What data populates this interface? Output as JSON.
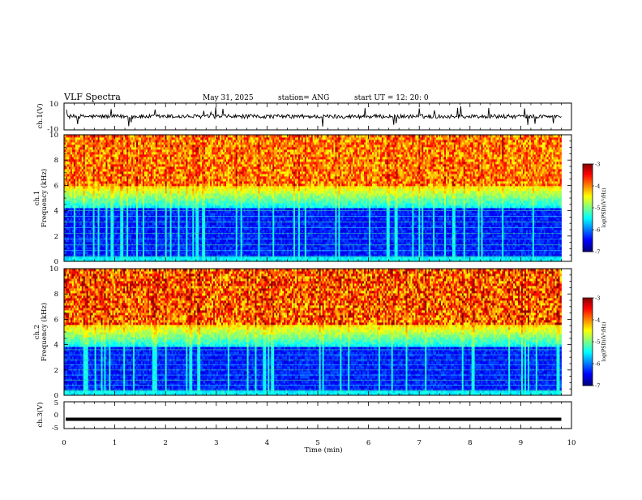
{
  "header": {
    "title": "VLF Spectra",
    "date": "May 31, 2025",
    "station": "station= ANG",
    "start": "start  UT  =    12: 20: 0"
  },
  "chart_data": [
    {
      "type": "line",
      "panel": "ch1-waveform",
      "ylabel": "ch.1(V)",
      "ylim": [
        -10,
        10
      ],
      "ytick_labels": [
        "10",
        "-10"
      ],
      "xlim": [
        0,
        10
      ],
      "baseline_level": 0,
      "noise_amplitude": 1.5
    },
    {
      "type": "heatmap",
      "panel": "ch1-spectrogram",
      "ylabel_lines": [
        "ch.1",
        "Frequency (kHz)"
      ],
      "ylim": [
        0,
        10
      ],
      "ytick_labels": [
        "0",
        "2",
        "4",
        "6",
        "8",
        "10"
      ],
      "xlim": [
        0,
        10
      ],
      "data_extent_min": 9.8,
      "colorbar": {
        "range": [
          -7,
          -3
        ],
        "tick_labels": [
          "-3",
          "-4",
          "-5",
          "-6",
          "-7"
        ],
        "label": "log(PSD)(V²/Hz)"
      },
      "low_band_khz": [
        0,
        4.2
      ],
      "transition_khz": [
        4.2,
        6.0
      ],
      "high_band_khz": [
        6.0,
        10
      ]
    },
    {
      "type": "heatmap",
      "panel": "ch2-spectrogram",
      "ylabel_lines": [
        "ch.2",
        "Frequency (kHz)"
      ],
      "ylim": [
        0,
        10
      ],
      "ytick_labels": [
        "0",
        "2",
        "4",
        "6",
        "8",
        "10"
      ],
      "xlim": [
        0,
        10
      ],
      "data_extent_min": 9.8,
      "colorbar": {
        "range": [
          -7,
          -3
        ],
        "tick_labels": [
          "-3",
          "-4",
          "-5",
          "-6",
          "-7"
        ],
        "label": "log(PSD)(V²/Hz)"
      },
      "low_band_khz": [
        0,
        3.8
      ],
      "transition_khz": [
        3.8,
        5.6
      ],
      "high_band_khz": [
        5.6,
        10
      ]
    },
    {
      "type": "line",
      "panel": "ch3-waveform",
      "ylabel": "ch.3(V)",
      "ylim": [
        -5,
        5
      ],
      "ytick_labels": [
        "5",
        "0",
        "-5"
      ],
      "xlim": [
        0,
        10
      ],
      "xtick_labels": [
        "0",
        "1",
        "2",
        "3",
        "4",
        "5",
        "6",
        "7",
        "8",
        "9",
        "10"
      ],
      "xlabel": "Time  (min)",
      "constant_level": -1.5
    }
  ]
}
